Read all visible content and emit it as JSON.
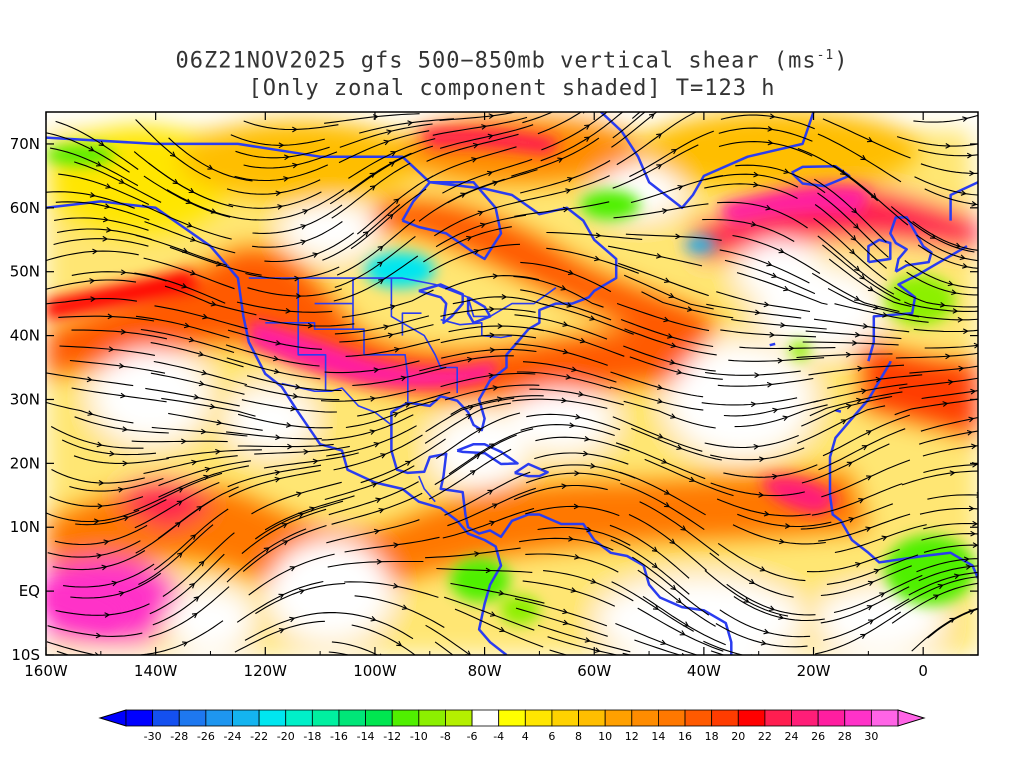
{
  "title": {
    "line1_prefix": "06Z21NOV2025 gfs 500−850mb vertical shear (ms",
    "line1_sup": "-1",
    "line1_suffix": ")",
    "line2": "[Only zonal component shaded] T=123 h"
  },
  "axes": {
    "lon_labels": [
      "160W",
      "140W",
      "120W",
      "100W",
      "80W",
      "60W",
      "40W",
      "20W",
      "0"
    ],
    "lat_labels": [
      "70N",
      "60N",
      "50N",
      "40N",
      "30N",
      "20N",
      "10N",
      "EQ",
      "10S"
    ]
  },
  "colorbar": {
    "levels": [
      "-30",
      "-28",
      "-26",
      "-24",
      "-22",
      "-20",
      "-18",
      "-16",
      "-14",
      "-12",
      "-10",
      "-8",
      "-6",
      "-4",
      "4",
      "6",
      "8",
      "10",
      "12",
      "14",
      "16",
      "18",
      "20",
      "22",
      "24",
      "26",
      "28",
      "30"
    ],
    "colors": [
      "#0000ff",
      "#1450f0",
      "#1e78f0",
      "#1e96f0",
      "#14b4f0",
      "#00e6f0",
      "#00f0c8",
      "#00f0a0",
      "#00e678",
      "#00e650",
      "#50f000",
      "#8cf000",
      "#b4f000",
      "#ffffff",
      "#ffff00",
      "#ffe600",
      "#ffd200",
      "#ffbe00",
      "#ffa000",
      "#ff8c00",
      "#ff7800",
      "#ff5a00",
      "#ff3c00",
      "#ff0000",
      "#ff1e50",
      "#ff1e78",
      "#ff1ea0",
      "#ff32c8",
      "#ff64e6"
    ],
    "low_arrow_color": "#0000ff",
    "high_arrow_color": "#ff64e6"
  },
  "map": {
    "lon_min": -160,
    "lon_max": 10,
    "lat_min": -10,
    "lat_max": 75,
    "coast_color": "#2a3cf0",
    "stream_color": "#000000"
  }
}
